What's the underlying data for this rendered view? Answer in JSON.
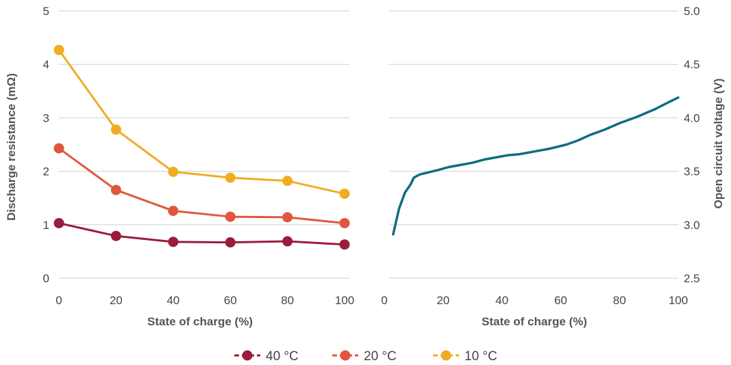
{
  "chart_data": [
    {
      "type": "line",
      "xlabel": "State of charge (%)",
      "ylabel": "Discharge resistance (mΩ)",
      "xlim": [
        0,
        100
      ],
      "ylim": [
        0,
        5
      ],
      "x_ticks": [
        "0",
        "20",
        "40",
        "60",
        "80",
        "100"
      ],
      "y_ticks": [
        "0",
        "1",
        "2",
        "3",
        "4",
        "5"
      ],
      "grid": "horizontal",
      "x": [
        0,
        20,
        40,
        60,
        80,
        100
      ],
      "series": [
        {
          "name": "40 °C",
          "color": "#9b1b3d",
          "values": [
            1.03,
            0.79,
            0.68,
            0.67,
            0.69,
            0.63
          ]
        },
        {
          "name": "20 °C",
          "color": "#e0563e",
          "values": [
            2.43,
            1.65,
            1.26,
            1.15,
            1.14,
            1.03
          ]
        },
        {
          "name": "10 °C",
          "color": "#f0ad23",
          "values": [
            4.27,
            2.78,
            1.99,
            1.88,
            1.82,
            1.58
          ]
        }
      ],
      "legend_position": "bottom-center"
    },
    {
      "type": "line",
      "xlabel": "State of charge (%)",
      "ylabel": "Open circuit voltage (V)",
      "xlim": [
        0,
        100
      ],
      "ylim": [
        2.5,
        5.0
      ],
      "x_ticks": [
        "0",
        "20",
        "40",
        "60",
        "80",
        "100"
      ],
      "y_ticks": [
        "2.5",
        "3.0",
        "3.5",
        "4.0",
        "4.5",
        "5.0"
      ],
      "y_axis_side": "right",
      "grid": "horizontal",
      "series": [
        {
          "color": "#0e6e80",
          "x": [
            3,
            5,
            7,
            9,
            10,
            12,
            15,
            18,
            22,
            26,
            30,
            34,
            38,
            42,
            46,
            50,
            56,
            62,
            66,
            70,
            75,
            80,
            86,
            92,
            97,
            100
          ],
          "values": [
            2.91,
            3.15,
            3.3,
            3.38,
            3.44,
            3.47,
            3.49,
            3.51,
            3.54,
            3.56,
            3.58,
            3.61,
            3.63,
            3.65,
            3.66,
            3.68,
            3.71,
            3.75,
            3.79,
            3.84,
            3.89,
            3.95,
            4.01,
            4.08,
            4.15,
            4.19
          ]
        }
      ]
    }
  ]
}
